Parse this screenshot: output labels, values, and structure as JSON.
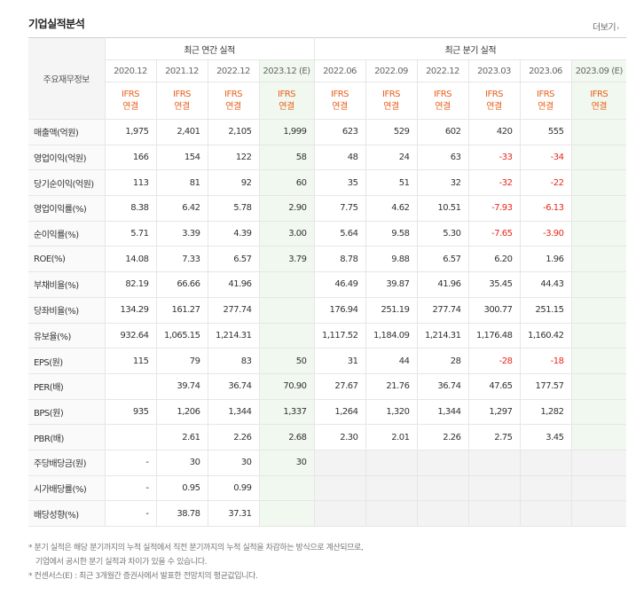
{
  "title": "기업실적분석",
  "more": {
    "label": "더보기",
    "icon": "chevron-right-icon",
    "glyph": "›"
  },
  "headers": {
    "row_label": "주요재무정보",
    "annual_group": "최근 연간 실적",
    "quarter_group": "최근 분기 실적",
    "periods": [
      "2020.12",
      "2021.12",
      "2022.12",
      "2023.12 (E)",
      "2022.06",
      "2022.09",
      "2022.12",
      "2023.03",
      "2023.06",
      "2023.09 (E)"
    ],
    "basis_line1": "IFRS",
    "basis_line2": "연결"
  },
  "rows": [
    {
      "label": "매출액(억원)",
      "values": [
        "1,975",
        "2,401",
        "2,105",
        "1,999",
        "623",
        "529",
        "602",
        "420",
        "555",
        ""
      ]
    },
    {
      "label": "영업이익(억원)",
      "values": [
        "166",
        "154",
        "122",
        "58",
        "48",
        "24",
        "63",
        "-33",
        "-34",
        ""
      ]
    },
    {
      "label": "당기순이익(억원)",
      "values": [
        "113",
        "81",
        "92",
        "60",
        "35",
        "51",
        "32",
        "-32",
        "-22",
        ""
      ]
    },
    {
      "label": "영업이익률(%)",
      "values": [
        "8.38",
        "6.42",
        "5.78",
        "2.90",
        "7.75",
        "4.62",
        "10.51",
        "-7.93",
        "-6.13",
        ""
      ]
    },
    {
      "label": "순이익률(%)",
      "values": [
        "5.71",
        "3.39",
        "4.39",
        "3.00",
        "5.64",
        "9.58",
        "5.30",
        "-7.65",
        "-3.90",
        ""
      ]
    },
    {
      "label": "ROE(%)",
      "values": [
        "14.08",
        "7.33",
        "6.57",
        "3.79",
        "8.78",
        "9.88",
        "6.57",
        "6.20",
        "1.96",
        ""
      ]
    },
    {
      "label": "부채비율(%)",
      "values": [
        "82.19",
        "66.66",
        "41.96",
        "",
        "46.49",
        "39.87",
        "41.96",
        "35.45",
        "44.43",
        ""
      ]
    },
    {
      "label": "당좌비율(%)",
      "values": [
        "134.29",
        "161.27",
        "277.74",
        "",
        "176.94",
        "251.19",
        "277.74",
        "300.77",
        "251.15",
        ""
      ]
    },
    {
      "label": "유보율(%)",
      "values": [
        "932.64",
        "1,065.15",
        "1,214.31",
        "",
        "1,117.52",
        "1,184.09",
        "1,214.31",
        "1,176.48",
        "1,160.42",
        ""
      ]
    },
    {
      "label": "EPS(원)",
      "values": [
        "115",
        "79",
        "83",
        "50",
        "31",
        "44",
        "28",
        "-28",
        "-18",
        ""
      ]
    },
    {
      "label": "PER(배)",
      "values": [
        "",
        "39.74",
        "36.74",
        "70.90",
        "27.67",
        "21.76",
        "36.74",
        "47.65",
        "177.57",
        ""
      ]
    },
    {
      "label": "BPS(원)",
      "values": [
        "935",
        "1,206",
        "1,344",
        "1,337",
        "1,264",
        "1,320",
        "1,344",
        "1,297",
        "1,282",
        ""
      ]
    },
    {
      "label": "PBR(배)",
      "values": [
        "",
        "2.61",
        "2.26",
        "2.68",
        "2.30",
        "2.01",
        "2.26",
        "2.75",
        "3.45",
        ""
      ]
    },
    {
      "label": "주당배당금(원)",
      "values": [
        "-",
        "30",
        "30",
        "30",
        "",
        "",
        "",
        "",
        "",
        ""
      ]
    },
    {
      "label": "시가배당률(%)",
      "values": [
        "-",
        "0.95",
        "0.99",
        "",
        "",
        "",
        "",
        "",
        "",
        ""
      ]
    },
    {
      "label": "배당성향(%)",
      "values": [
        "-",
        "38.78",
        "37.31",
        "",
        "",
        "",
        "",
        "",
        "",
        ""
      ]
    }
  ],
  "notes": [
    "* 분기 실적은 해당 분기까지의 누적 실적에서 직전 분기까지의 누적 실적을 차감하는 방식으로 계산되므로,",
    "기업에서 공시한 분기 실적과 차이가 있을 수 있습니다.",
    "* 컨센서스(E) : 최근 3개월간 증권사에서 발표한 전망치의 평균값입니다."
  ]
}
